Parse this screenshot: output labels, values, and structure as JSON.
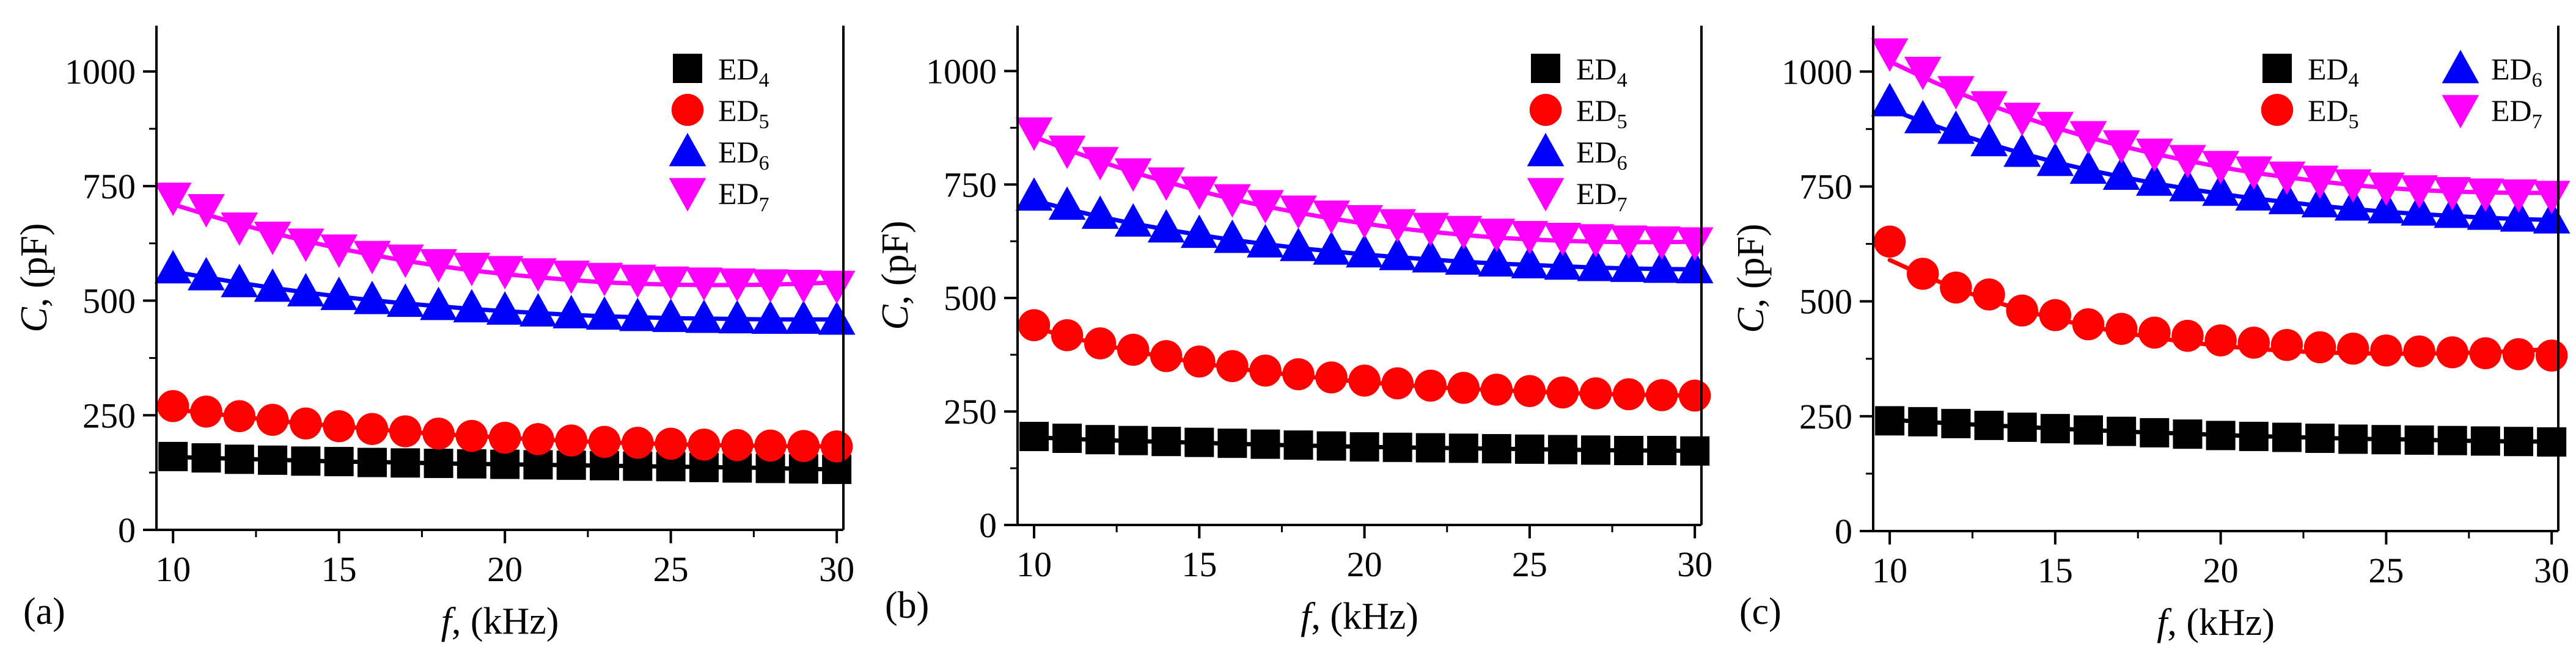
{
  "figure": {
    "panels": [
      "a",
      "b",
      "c"
    ]
  },
  "chart_data": [
    {
      "panel_label": "(a)",
      "type": "scatter",
      "xlabel_main": "f",
      "xlabel_unit": ", (kHz)",
      "ylabel_main": "C",
      "ylabel_unit": ", (pF)",
      "xlim": [
        9.5,
        30.2
      ],
      "ylim": [
        0,
        1100
      ],
      "xticks": [
        10,
        15,
        20,
        25,
        30
      ],
      "yticks": [
        0,
        250,
        500,
        750,
        1000
      ],
      "legend": {
        "placement": "top-right",
        "columns": 1
      },
      "x": [
        10,
        11,
        12,
        13,
        14,
        15,
        16,
        17,
        18,
        19,
        20,
        21,
        22,
        23,
        24,
        25,
        26,
        27,
        28,
        29,
        30
      ],
      "series": [
        {
          "name": "ED",
          "sub": "4",
          "color": "#000000",
          "marker": "square",
          "values": [
            160,
            157,
            154,
            152,
            150,
            149,
            147,
            146,
            145,
            144,
            143,
            142,
            141,
            140,
            139,
            138,
            136,
            135,
            134,
            133,
            132
          ],
          "fit": [
            159,
            157,
            155,
            153,
            151,
            149,
            148,
            147,
            145,
            144,
            143,
            142,
            141,
            140,
            139,
            138,
            137,
            136,
            135,
            133,
            132
          ]
        },
        {
          "name": "ED",
          "sub": "5",
          "color": "#ff0000",
          "marker": "circle",
          "values": [
            270,
            258,
            248,
            240,
            232,
            226,
            220,
            215,
            210,
            205,
            201,
            198,
            195,
            192,
            190,
            188,
            186,
            185,
            184,
            183,
            182
          ],
          "fit": [
            263,
            255,
            247,
            239,
            232,
            226,
            220,
            214,
            209,
            205,
            201,
            197,
            194,
            191,
            189,
            187,
            185,
            184,
            183,
            182,
            182
          ]
        },
        {
          "name": "ED",
          "sub": "6",
          "color": "#0000ff",
          "marker": "triangle-up",
          "values": [
            570,
            555,
            540,
            530,
            520,
            512,
            503,
            497,
            490,
            485,
            480,
            476,
            472,
            469,
            466,
            464,
            462,
            461,
            460,
            460,
            458
          ],
          "fit": [
            563,
            551,
            539,
            528,
            518,
            509,
            501,
            494,
            488,
            482,
            477,
            473,
            469,
            466,
            464,
            462,
            461,
            460,
            459,
            459,
            459
          ]
        },
        {
          "name": "ED",
          "sub": "7",
          "color": "#ff00ff",
          "marker": "triangle-down",
          "values": [
            725,
            700,
            660,
            640,
            625,
            612,
            598,
            590,
            580,
            572,
            565,
            560,
            555,
            550,
            546,
            542,
            540,
            538,
            536,
            535,
            533
          ],
          "fit": [
            710,
            688,
            667,
            648,
            630,
            614,
            600,
            587,
            576,
            566,
            558,
            551,
            545,
            540,
            537,
            535,
            534,
            534,
            535,
            537,
            540
          ]
        }
      ]
    },
    {
      "panel_label": "(b)",
      "type": "scatter",
      "xlabel_main": "f",
      "xlabel_unit": ", (kHz)",
      "ylabel_main": "C",
      "ylabel_unit": ", (pF)",
      "xlim": [
        9.5,
        30.2
      ],
      "ylim": [
        0,
        1100
      ],
      "xticks": [
        10,
        15,
        20,
        25,
        30
      ],
      "yticks": [
        0,
        250,
        500,
        750,
        1000
      ],
      "legend": {
        "placement": "top-right",
        "columns": 1
      },
      "x": [
        10,
        11,
        12,
        13,
        14,
        15,
        16,
        17,
        18,
        19,
        20,
        21,
        22,
        23,
        24,
        25,
        26,
        27,
        28,
        29,
        30
      ],
      "series": [
        {
          "name": "ED",
          "sub": "4",
          "color": "#000000",
          "marker": "square",
          "values": [
            195,
            191,
            188,
            186,
            184,
            182,
            180,
            178,
            176,
            174,
            172,
            171,
            170,
            169,
            168,
            167,
            166,
            165,
            164,
            164,
            163
          ],
          "fit": [
            193,
            190,
            187,
            185,
            183,
            181,
            179,
            177,
            175,
            174,
            172,
            171,
            170,
            169,
            168,
            167,
            166,
            165,
            164,
            164,
            163
          ]
        },
        {
          "name": "ED",
          "sub": "5",
          "color": "#ff0000",
          "marker": "circle",
          "values": [
            440,
            418,
            400,
            386,
            372,
            360,
            350,
            340,
            332,
            325,
            318,
            312,
            307,
            302,
            298,
            295,
            292,
            290,
            288,
            286,
            285
          ],
          "fit": [
            435,
            415,
            398,
            383,
            369,
            357,
            346,
            337,
            329,
            321,
            315,
            309,
            304,
            300,
            297,
            294,
            291,
            289,
            287,
            286,
            285
          ]
        },
        {
          "name": "ED",
          "sub": "6",
          "color": "#0000ff",
          "marker": "triangle-up",
          "values": [
            725,
            705,
            685,
            668,
            655,
            643,
            632,
            622,
            614,
            606,
            600,
            594,
            589,
            584,
            580,
            576,
            573,
            570,
            568,
            566,
            565
          ],
          "fit": [
            715,
            696,
            679,
            664,
            651,
            639,
            628,
            619,
            610,
            603,
            596,
            590,
            585,
            580,
            576,
            573,
            570,
            567,
            565,
            564,
            563
          ]
        },
        {
          "name": "ED",
          "sub": "7",
          "color": "#ff00ff",
          "marker": "triangle-down",
          "values": [
            865,
            825,
            800,
            775,
            755,
            735,
            718,
            705,
            693,
            682,
            672,
            663,
            655,
            648,
            642,
            637,
            633,
            630,
            627,
            625,
            623
          ],
          "fit": [
            855,
            827,
            801,
            777,
            756,
            736,
            718,
            702,
            688,
            675,
            664,
            654,
            646,
            639,
            633,
            629,
            626,
            624,
            623,
            623,
            624
          ]
        }
      ]
    },
    {
      "panel_label": "(c)",
      "type": "scatter",
      "xlabel_main": "f",
      "xlabel_unit": ", (kHz)",
      "ylabel_main": "C",
      "ylabel_unit": ", (pF)",
      "xlim": [
        9.5,
        30.2
      ],
      "ylim": [
        0,
        1100
      ],
      "xticks": [
        10,
        15,
        20,
        25,
        30
      ],
      "yticks": [
        0,
        250,
        500,
        750,
        1000
      ],
      "legend": {
        "placement": "top-right",
        "columns": 2
      },
      "x": [
        10,
        11,
        12,
        13,
        14,
        15,
        16,
        17,
        18,
        19,
        20,
        21,
        22,
        23,
        24,
        25,
        26,
        27,
        28,
        29,
        30
      ],
      "series": [
        {
          "name": "ED",
          "sub": "4",
          "color": "#000000",
          "marker": "square",
          "values": [
            240,
            238,
            234,
            230,
            226,
            223,
            220,
            217,
            214,
            211,
            208,
            206,
            204,
            202,
            200,
            199,
            198,
            197,
            196,
            195,
            194
          ],
          "fit": [
            242,
            238,
            234,
            230,
            227,
            223,
            220,
            217,
            214,
            212,
            209,
            207,
            205,
            203,
            201,
            200,
            199,
            197,
            196,
            195,
            195
          ]
        },
        {
          "name": "ED",
          "sub": "5",
          "color": "#ff0000",
          "marker": "circle",
          "values": [
            630,
            560,
            530,
            515,
            480,
            470,
            450,
            440,
            432,
            425,
            415,
            410,
            405,
            400,
            397,
            393,
            391,
            389,
            387,
            385,
            382
          ],
          "fit": [
            590,
            557,
            528,
            503,
            481,
            462,
            446,
            432,
            421,
            411,
            403,
            397,
            392,
            389,
            387,
            386,
            386,
            387,
            389,
            392,
            396
          ]
        },
        {
          "name": "ED",
          "sub": "6",
          "color": "#0000ff",
          "marker": "triangle-up",
          "values": [
            935,
            898,
            875,
            848,
            825,
            805,
            788,
            775,
            762,
            750,
            740,
            730,
            722,
            715,
            708,
            702,
            697,
            692,
            688,
            684,
            680
          ],
          "fit": [
            918,
            891,
            866,
            843,
            822,
            803,
            786,
            771,
            757,
            745,
            734,
            724,
            716,
            708,
            701,
            695,
            690,
            686,
            682,
            679,
            677
          ]
        },
        {
          "name": "ED",
          "sub": "7",
          "color": "#ff00ff",
          "marker": "triangle-down",
          "values": [
            1040,
            1000,
            958,
            925,
            900,
            880,
            860,
            840,
            822,
            808,
            795,
            783,
            772,
            763,
            755,
            748,
            742,
            738,
            735,
            733,
            730
          ],
          "fit": [
            1022,
            988,
            956,
            928,
            902,
            878,
            857,
            838,
            821,
            806,
            792,
            780,
            770,
            761,
            753,
            747,
            742,
            739,
            737,
            736,
            736
          ]
        }
      ]
    }
  ]
}
